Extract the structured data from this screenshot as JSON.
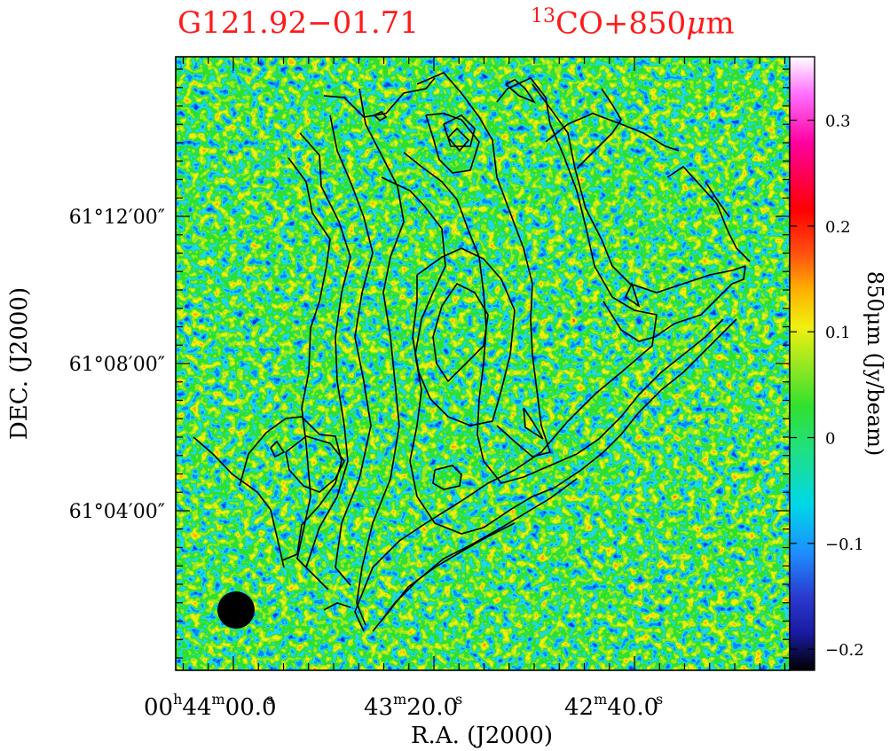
{
  "title_source": "G121.92−01.71",
  "title_tracer_sup": "13",
  "title_tracer_main": "CO+850",
  "title_tracer_mu": "μ",
  "title_tracer_unit": "m",
  "title_color": "#ff1a1a",
  "chart_data": {
    "type": "heatmap",
    "xlabel": "R.A. (J2000)",
    "ylabel": "DEC. (J2000)",
    "colorbar_label": "850μm (Jy/beam)",
    "x_ticks": [
      {
        "h": "00",
        "m": "44",
        "s": "00.0",
        "label": "00h44m00.0s"
      },
      {
        "m": "43",
        "s": "20.0",
        "label": "43m20.0s"
      },
      {
        "m": "42",
        "s": "40.0",
        "label": "42m40.0s"
      }
    ],
    "y_ticks": [
      "61°12′00″",
      "61°08′00″",
      "61°04′00″"
    ],
    "y_tick_values_arcmin_offset": [
      12,
      8,
      4
    ],
    "colorbar_ticks": [
      {
        "value": 0.3,
        "label": "0.3"
      },
      {
        "value": 0.2,
        "label": "0.2"
      },
      {
        "value": 0.1,
        "label": "0.1"
      },
      {
        "value": 0.0,
        "label": "0"
      },
      {
        "value": -0.1,
        "label": "−0.1"
      },
      {
        "value": -0.2,
        "label": "−0.2"
      }
    ],
    "colorbar_range": [
      -0.22,
      0.36
    ],
    "colormap": [
      "#000000",
      "#1a1aa0",
      "#2a3ad0",
      "#1e8cff",
      "#00d8e8",
      "#20e080",
      "#30e030",
      "#9ae820",
      "#f0f010",
      "#ffb000",
      "#ff5010",
      "#ff0000",
      "#ff00a0",
      "#ff70ff",
      "#ffffff"
    ],
    "beam_marker": "filled black circle",
    "contour_color": "#000000",
    "legend_placement": "none",
    "grid": false
  }
}
